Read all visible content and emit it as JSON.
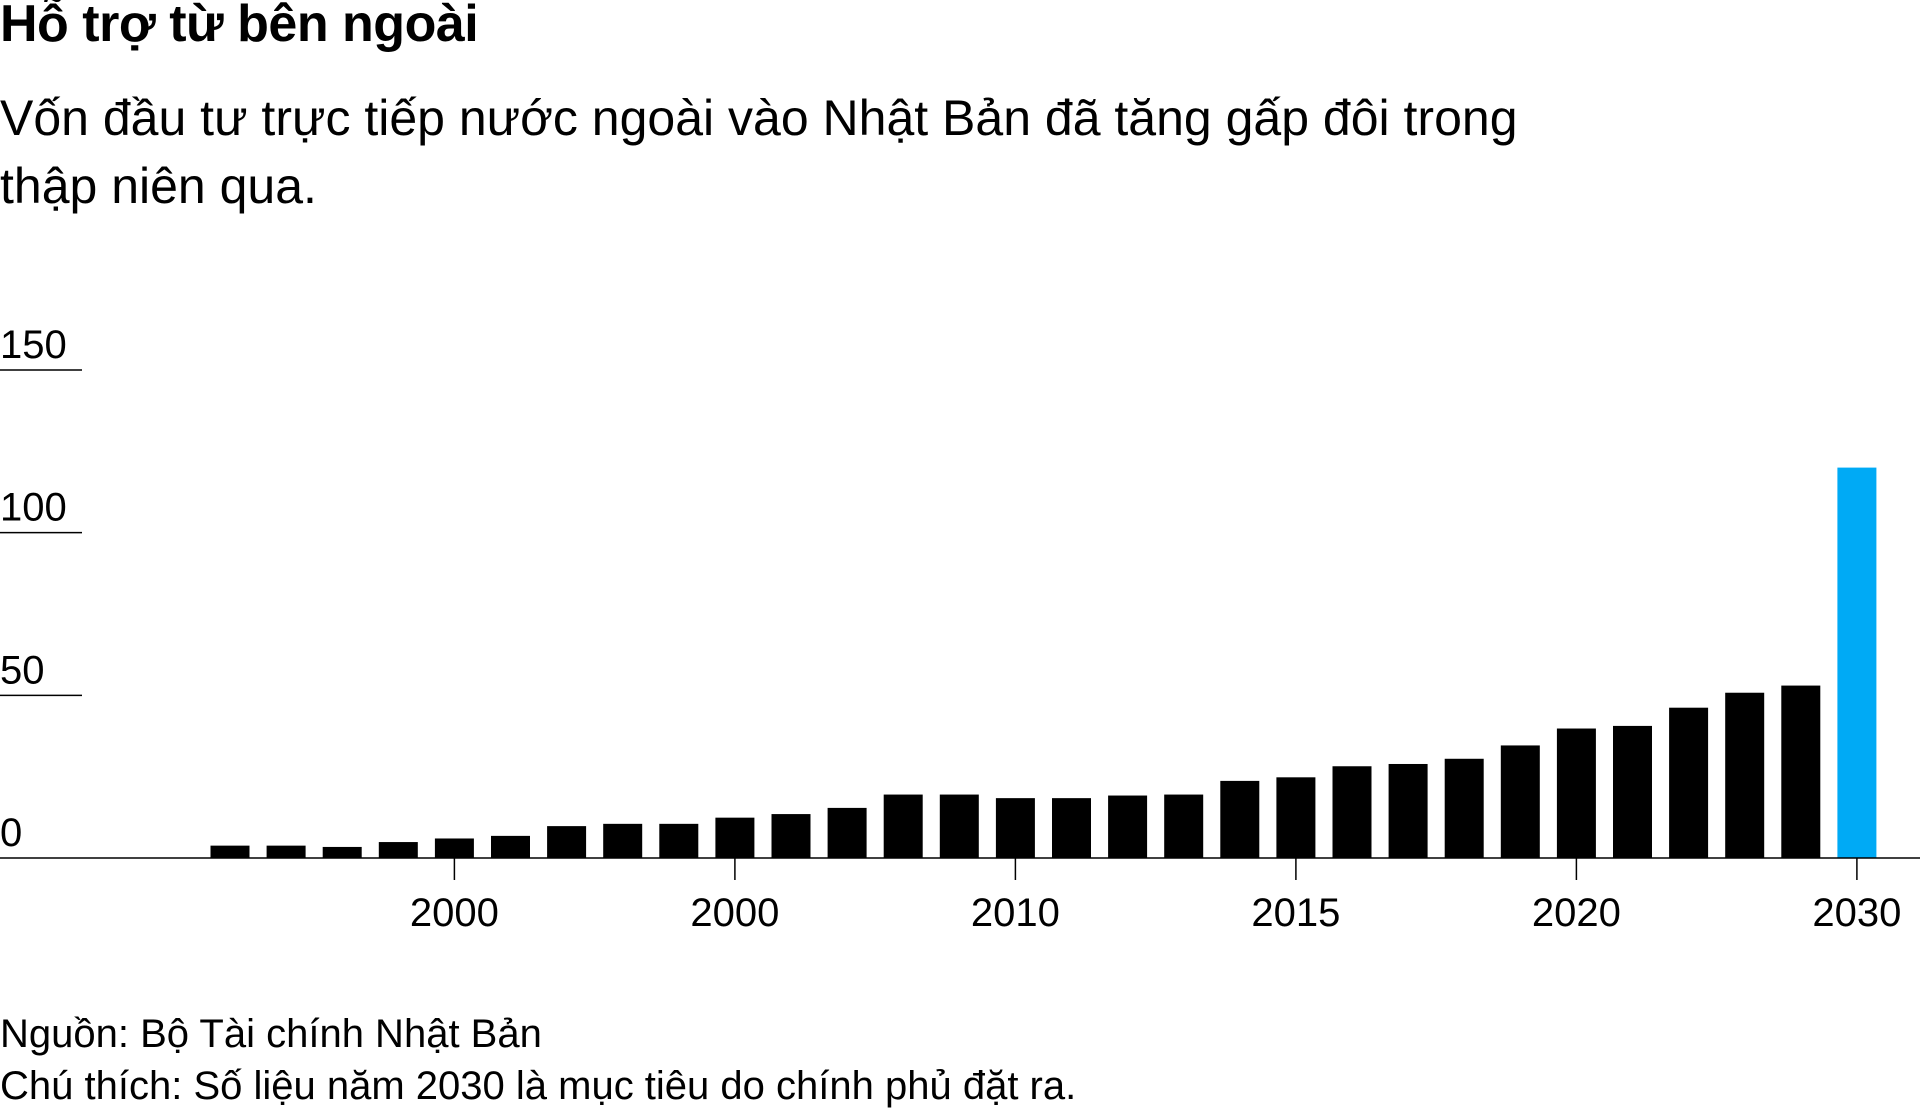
{
  "header": {
    "title": "Hỗ trợ từ bên ngoài",
    "subtitle": "Vốn đầu tư trực tiếp nước ngoài vào Nhật Bản đã tăng gấp đôi trong thập niên qua."
  },
  "footer": {
    "source": "Nguồn: Bộ Tài chính Nhật Bản",
    "note": "Chú thích: Số liệu năm 2030 là mục tiêu do chính phủ đặt ra."
  },
  "colors": {
    "bar": "#000000",
    "highlight": "#00aaf5"
  },
  "chart_data": {
    "type": "bar",
    "title": "Hỗ trợ từ bên ngoài",
    "xlabel": "",
    "ylabel": "",
    "ylim": [
      0,
      150
    ],
    "yticks": [
      "0",
      "50",
      "100",
      "150"
    ],
    "ytick_values": [
      0,
      50,
      100,
      150
    ],
    "xtick_labels": [
      "2000",
      "2000",
      "2010",
      "2015",
      "2020",
      "2030"
    ],
    "xtick_bar_index": [
      4,
      9,
      14,
      19,
      24,
      29
    ],
    "values": [
      3.8,
      3.8,
      3.4,
      4.9,
      6.0,
      6.8,
      9.8,
      10.5,
      10.5,
      12.4,
      13.5,
      15.4,
      19.5,
      19.5,
      18.4,
      18.4,
      19.2,
      19.5,
      23.7,
      24.8,
      28.2,
      28.9,
      30.5,
      34.6,
      39.8,
      40.6,
      46.2,
      50.8,
      53.0,
      120.0
    ],
    "highlight_index": 29,
    "grid": true
  }
}
